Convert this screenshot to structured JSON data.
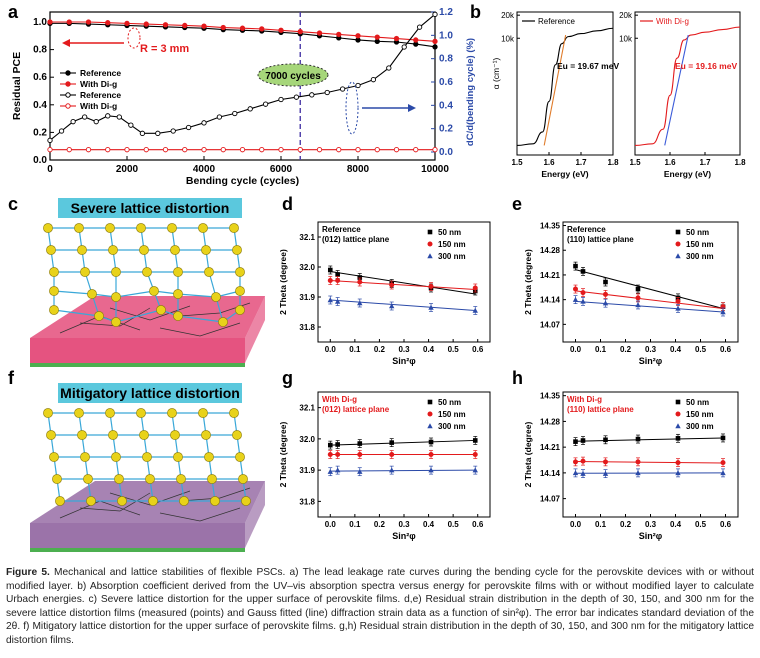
{
  "panel_letters": {
    "a": "a",
    "b": "b",
    "c": "c",
    "d": "d",
    "e": "e",
    "f": "f",
    "g": "g",
    "h": "h"
  },
  "caption": {
    "label": "Figure 5.",
    "text": "Mechanical and lattice stabilities of flexible PSCs. a) The lead leakage rate curves during the bending cycle for the perovskite devices with or without modified layer. b) Absorption coefficient derived from the UV–vis absorption spectra versus energy for perovskite films with or without modified layer to calculate Urbach energies. c) Severe lattice distortion for the upper surface of perovskite films. d,e) Residual strain distribution in the depth of 30, 150, and 300 nm for the severe lattice distortion films (measured (points) and Gauss fitted (line) diffraction strain data as a function of sin²φ). The error bar indicates standard deviation of the 2θ. f) Mitigatory lattice distortion for the upper surface of perovskite films. g,h) Residual strain distribution in the depth of 30, 150, and 300 nm for the mitigatory lattice distortion films."
  },
  "colors": {
    "reference": "#000000",
    "with_dig": "#e31a1c",
    "blue": "#2b4aa8",
    "orange": "#e07b2a",
    "blue_line": "#3b5bd9",
    "cyan_label": "#5bc8dd",
    "pink": "#e0356a",
    "purple": "#8a5a9a"
  },
  "panel_c": {
    "title": "Severe lattice distortion"
  },
  "panel_f": {
    "title": "Mitigatory lattice distortion"
  },
  "chart_data": [
    {
      "id": "a",
      "type": "line",
      "xlabel": "Bending cycle (cycles)",
      "ylabel": "Residual PCE",
      "y2label": "dC/d(bending cycle) (%)",
      "xlim": [
        0,
        10000
      ],
      "ylim": [
        0.0,
        1.0
      ],
      "y2lim": [
        0.0,
        1.2
      ],
      "xticks": [
        "0",
        "2000",
        "4000",
        "6000",
        "8000",
        "10000"
      ],
      "yticks": [
        "0.0",
        "0.2",
        "0.4",
        "0.6",
        "0.8",
        "1.0"
      ],
      "y2ticks": [
        "0.0",
        "0.2",
        "0.4",
        "0.6",
        "0.8",
        "1.0",
        "1.2"
      ],
      "annotations": {
        "r": "R = 3 mm",
        "cycles": "7000 cycles"
      },
      "vline_x": 6500,
      "legend": [
        "Reference",
        "With Di-g",
        "Reference",
        "With Di-g"
      ],
      "series": [
        {
          "name": "Reference",
          "axis": "left",
          "marker": "filled",
          "color": "#000000",
          "x": [
            0,
            500,
            1000,
            1500,
            2000,
            2500,
            3000,
            3500,
            4000,
            4500,
            5000,
            5500,
            6000,
            6500,
            7000,
            7500,
            8000,
            8500,
            9000,
            9500,
            10000
          ],
          "y": [
            0.99,
            0.99,
            0.985,
            0.98,
            0.975,
            0.97,
            0.965,
            0.96,
            0.955,
            0.945,
            0.94,
            0.935,
            0.925,
            0.915,
            0.9,
            0.885,
            0.87,
            0.86,
            0.855,
            0.84,
            0.82
          ]
        },
        {
          "name": "With Di-g",
          "axis": "left",
          "marker": "filled",
          "color": "#e31a1c",
          "x": [
            0,
            500,
            1000,
            1500,
            2000,
            2500,
            3000,
            3500,
            4000,
            4500,
            5000,
            5500,
            6000,
            6500,
            7000,
            7500,
            8000,
            8500,
            9000,
            9500,
            10000
          ],
          "y": [
            1.0,
            1.0,
            1.0,
            0.995,
            0.99,
            0.985,
            0.98,
            0.975,
            0.97,
            0.96,
            0.955,
            0.95,
            0.94,
            0.93,
            0.92,
            0.91,
            0.9,
            0.89,
            0.88,
            0.87,
            0.86
          ]
        },
        {
          "name": "Reference",
          "axis": "right",
          "marker": "open",
          "color": "#000000",
          "x": [
            0,
            300,
            600,
            900,
            1200,
            1500,
            1800,
            2100,
            2400,
            2800,
            3200,
            3600,
            4000,
            4400,
            4800,
            5200,
            5600,
            6000,
            6400,
            6800,
            7200,
            7600,
            8000,
            8400,
            8800,
            9200,
            9600,
            10000
          ],
          "y": [
            0.1,
            0.18,
            0.26,
            0.3,
            0.26,
            0.31,
            0.3,
            0.23,
            0.16,
            0.16,
            0.18,
            0.21,
            0.25,
            0.3,
            0.33,
            0.37,
            0.41,
            0.45,
            0.47,
            0.49,
            0.51,
            0.54,
            0.57,
            0.62,
            0.72,
            0.9,
            1.07,
            1.18
          ]
        },
        {
          "name": "With Di-g",
          "axis": "right",
          "marker": "open",
          "color": "#e31a1c",
          "x": [
            0,
            500,
            1000,
            1500,
            2000,
            2500,
            3000,
            3500,
            4000,
            4500,
            5000,
            5500,
            6000,
            6500,
            7000,
            7500,
            8000,
            8500,
            9000,
            9500,
            10000
          ],
          "y": [
            0.02,
            0.02,
            0.02,
            0.02,
            0.02,
            0.02,
            0.02,
            0.02,
            0.02,
            0.02,
            0.02,
            0.02,
            0.02,
            0.02,
            0.02,
            0.02,
            0.02,
            0.02,
            0.02,
            0.02,
            0.02
          ]
        }
      ]
    },
    {
      "id": "b1",
      "type": "line",
      "legend": [
        "Reference"
      ],
      "xlabel": "Energy (eV)",
      "ylabel": "α (cm⁻¹)",
      "xlim": [
        1.5,
        1.8
      ],
      "xticks": [
        "1.5",
        "1.6",
        "1.7",
        "1.8"
      ],
      "ylog": true,
      "yticks": [
        "20k",
        "10k"
      ],
      "eu_label": "Eu = 19.67 meV",
      "series": [
        {
          "name": "Reference",
          "x": [
            1.5,
            1.55,
            1.58,
            1.6,
            1.62,
            1.64,
            1.66,
            1.7,
            1.75,
            1.8
          ],
          "y": [
            400,
            420,
            600,
            1500,
            4500,
            8500,
            10500,
            11500,
            12500,
            13500
          ]
        }
      ]
    },
    {
      "id": "b2",
      "type": "line",
      "legend": [
        "With Di-g"
      ],
      "xlabel": "Energy (eV)",
      "xlim": [
        1.5,
        1.8
      ],
      "xticks": [
        "1.5",
        "1.6",
        "1.7",
        "1.8"
      ],
      "ylog": true,
      "yticks": [
        "20k",
        "10k"
      ],
      "eu_label": "Eu = 19.16 meV",
      "series": [
        {
          "name": "With Di-g",
          "x": [
            1.5,
            1.55,
            1.58,
            1.6,
            1.62,
            1.64,
            1.66,
            1.7,
            1.75,
            1.8
          ],
          "y": [
            400,
            420,
            650,
            1800,
            5500,
            9500,
            11000,
            12000,
            13000,
            14000
          ]
        }
      ]
    },
    {
      "id": "d",
      "type": "scatter",
      "title_lines": [
        "Reference",
        "(012) lattice plane"
      ],
      "xlabel": "Sin²φ",
      "ylabel": "2 Theta (degree)",
      "xlim": [
        -0.05,
        0.65
      ],
      "ylim": [
        31.75,
        32.15
      ],
      "xticks": [
        "0.0",
        "0.1",
        "0.2",
        "0.3",
        "0.4",
        "0.5",
        "0.6"
      ],
      "yticks": [
        "31.8",
        "31.9",
        "32.0",
        "32.1"
      ],
      "x": [
        0.0,
        0.03,
        0.12,
        0.25,
        0.41,
        0.59
      ],
      "series": [
        {
          "name": "50 nm",
          "color": "#000000",
          "marker": "square",
          "values": [
            31.99,
            31.975,
            31.965,
            31.945,
            31.93,
            31.92
          ],
          "fit": [
            31.985,
            31.91
          ]
        },
        {
          "name": "150 nm",
          "color": "#e31a1c",
          "marker": "circle",
          "values": [
            31.955,
            31.955,
            31.95,
            31.94,
            31.935,
            31.93
          ],
          "fit": [
            31.955,
            31.925
          ]
        },
        {
          "name": "300 nm",
          "color": "#2b4aa8",
          "marker": "triangle",
          "values": [
            31.89,
            31.885,
            31.88,
            31.87,
            31.865,
            31.855
          ],
          "fit": [
            31.89,
            31.855
          ]
        }
      ]
    },
    {
      "id": "e",
      "type": "scatter",
      "title_lines": [
        "Reference",
        "(110) lattice plane"
      ],
      "xlabel": "Sin²φ",
      "ylabel": "2 Theta (degree)",
      "xlim": [
        -0.05,
        0.65
      ],
      "ylim": [
        14.02,
        14.36
      ],
      "xticks": [
        "0.0",
        "0.1",
        "0.2",
        "0.3",
        "0.4",
        "0.5",
        "0.6"
      ],
      "yticks": [
        "14.07",
        "14.14",
        "14.21",
        "14.28",
        "14.35"
      ],
      "x": [
        0.0,
        0.03,
        0.12,
        0.25,
        0.41,
        0.59
      ],
      "series": [
        {
          "name": "50 nm",
          "color": "#000000",
          "marker": "square",
          "values": [
            14.235,
            14.22,
            14.19,
            14.17,
            14.145,
            14.12
          ],
          "fit": [
            14.225,
            14.115
          ]
        },
        {
          "name": "150 nm",
          "color": "#e31a1c",
          "marker": "circle",
          "values": [
            14.17,
            14.16,
            14.155,
            14.145,
            14.135,
            14.12
          ],
          "fit": [
            14.165,
            14.115
          ]
        },
        {
          "name": "300 nm",
          "color": "#2b4aa8",
          "marker": "triangle",
          "values": [
            14.14,
            14.135,
            14.13,
            14.125,
            14.115,
            14.105
          ],
          "fit": [
            14.135,
            14.105
          ]
        }
      ]
    },
    {
      "id": "g",
      "type": "scatter",
      "title_lines": [
        "With Di-g",
        "(012) lattice plane"
      ],
      "xlabel": "Sin²φ",
      "ylabel": "2 Theta (degree)",
      "xlim": [
        -0.05,
        0.65
      ],
      "ylim": [
        31.75,
        32.15
      ],
      "xticks": [
        "0.0",
        "0.1",
        "0.2",
        "0.3",
        "0.4",
        "0.5",
        "0.6"
      ],
      "yticks": [
        "31.8",
        "31.9",
        "32.0",
        "32.1"
      ],
      "x": [
        0.0,
        0.03,
        0.12,
        0.25,
        0.41,
        0.59
      ],
      "series": [
        {
          "name": "50 nm",
          "color": "#000000",
          "marker": "square",
          "values": [
            31.98,
            31.982,
            31.985,
            31.988,
            31.99,
            31.995
          ],
          "fit": [
            31.98,
            31.995
          ]
        },
        {
          "name": "150 nm",
          "color": "#e31a1c",
          "marker": "circle",
          "values": [
            31.95,
            31.95,
            31.95,
            31.95,
            31.95,
            31.95
          ],
          "fit": [
            31.95,
            31.95
          ]
        },
        {
          "name": "300 nm",
          "color": "#2b4aa8",
          "marker": "triangle",
          "values": [
            31.895,
            31.9,
            31.895,
            31.9,
            31.9,
            31.9
          ],
          "fit": [
            31.897,
            31.9
          ]
        }
      ]
    },
    {
      "id": "h",
      "type": "scatter",
      "title_lines": [
        "With Di-g",
        "(110) lattice plane"
      ],
      "xlabel": "Sin²φ",
      "ylabel": "2 Theta (degree)",
      "xlim": [
        -0.05,
        0.65
      ],
      "ylim": [
        14.02,
        14.36
      ],
      "xticks": [
        "0.0",
        "0.1",
        "0.2",
        "0.3",
        "0.4",
        "0.5",
        "0.6"
      ],
      "yticks": [
        "14.07",
        "14.14",
        "14.21",
        "14.28",
        "14.35"
      ],
      "x": [
        0.0,
        0.03,
        0.12,
        0.25,
        0.41,
        0.59
      ],
      "series": [
        {
          "name": "50 nm",
          "color": "#000000",
          "marker": "square",
          "values": [
            14.225,
            14.228,
            14.23,
            14.232,
            14.234,
            14.235
          ],
          "fit": [
            14.226,
            14.235
          ]
        },
        {
          "name": "150 nm",
          "color": "#e31a1c",
          "marker": "circle",
          "values": [
            14.17,
            14.172,
            14.17,
            14.17,
            14.168,
            14.168
          ],
          "fit": [
            14.171,
            14.167
          ]
        },
        {
          "name": "300 nm",
          "color": "#2b4aa8",
          "marker": "triangle",
          "values": [
            14.14,
            14.138,
            14.138,
            14.14,
            14.14,
            14.14
          ],
          "fit": [
            14.139,
            14.14
          ]
        }
      ]
    }
  ]
}
